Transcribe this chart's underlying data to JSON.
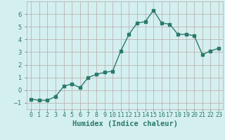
{
  "x": [
    0,
    1,
    2,
    3,
    4,
    5,
    6,
    7,
    8,
    9,
    10,
    11,
    12,
    13,
    14,
    15,
    16,
    17,
    18,
    19,
    20,
    21,
    22,
    23
  ],
  "y": [
    -0.7,
    -0.8,
    -0.8,
    -0.5,
    0.3,
    0.5,
    0.2,
    1.0,
    1.25,
    1.4,
    1.5,
    3.1,
    4.4,
    5.3,
    5.4,
    6.3,
    5.3,
    5.2,
    4.4,
    4.4,
    4.3,
    2.8,
    3.1,
    3.3
  ],
  "line_color": "#2a7a6a",
  "marker": "s",
  "markersize": 2.5,
  "linewidth": 1.0,
  "xlabel": "Humidex (Indice chaleur)",
  "xlim": [
    -0.5,
    23.5
  ],
  "ylim": [
    -1.5,
    7.0
  ],
  "yticks": [
    -1,
    0,
    1,
    2,
    3,
    4,
    5,
    6
  ],
  "xtick_labels": [
    "0",
    "1",
    "2",
    "3",
    "4",
    "5",
    "6",
    "7",
    "8",
    "9",
    "10",
    "11",
    "12",
    "13",
    "14",
    "15",
    "16",
    "17",
    "18",
    "19",
    "20",
    "21",
    "22",
    "23"
  ],
  "bg_color": "#d4efef",
  "grid_color": "#b8a8a8",
  "tick_color": "#2a7a6a",
  "label_color": "#2a7a6a",
  "xlabel_fontsize": 7.5,
  "tick_fontsize": 6.0
}
